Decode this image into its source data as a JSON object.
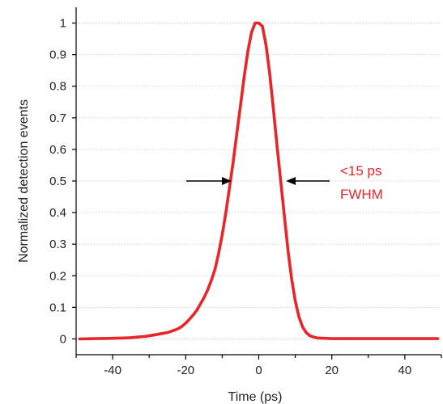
{
  "chart_data": {
    "type": "line",
    "title": "",
    "xlabel": "Time (ps)",
    "ylabel": "Normalized detection events",
    "xlim": [
      -50,
      50
    ],
    "ylim": [
      -0.05,
      1.05
    ],
    "xticks": [
      -40,
      -20,
      0,
      20,
      40
    ],
    "xtick_labels": [
      "-40",
      "-20",
      "0",
      "20",
      "40"
    ],
    "yticks": [
      0,
      0.1,
      0.2,
      0.3,
      0.4,
      0.5,
      0.6,
      0.7,
      0.8,
      0.9,
      1
    ],
    "ytick_labels": [
      "0",
      "0.1",
      "0.2",
      "0.3",
      "0.4",
      "0.5",
      "0.6",
      "0.7",
      "0.8",
      "0.9",
      "1"
    ],
    "grid": "horizontal dotted",
    "series": [
      {
        "color": "#e8262a",
        "x": [
          -49,
          -45,
          -40,
          -37,
          -35,
          -33,
          -31,
          -29,
          -27,
          -25,
          -24,
          -23,
          -22,
          -21,
          -20,
          -19,
          -18,
          -17,
          -16,
          -15,
          -14,
          -13,
          -12,
          -11,
          -10,
          -9,
          -8,
          -7,
          -6,
          -5,
          -4,
          -3,
          -2,
          -1,
          0,
          1,
          2,
          3,
          4,
          5,
          6,
          7,
          8,
          9,
          10,
          11,
          12,
          13,
          14,
          15,
          16,
          18,
          20,
          25,
          30,
          40,
          49
        ],
        "y": [
          0,
          0.001,
          0.002,
          0.003,
          0.004,
          0.006,
          0.008,
          0.012,
          0.016,
          0.02,
          0.024,
          0.028,
          0.033,
          0.04,
          0.05,
          0.062,
          0.075,
          0.09,
          0.11,
          0.13,
          0.155,
          0.185,
          0.22,
          0.27,
          0.33,
          0.4,
          0.48,
          0.56,
          0.65,
          0.74,
          0.83,
          0.91,
          0.97,
          1.0,
          1.0,
          0.99,
          0.93,
          0.84,
          0.73,
          0.61,
          0.5,
          0.39,
          0.28,
          0.19,
          0.12,
          0.07,
          0.038,
          0.02,
          0.01,
          0.006,
          0.003,
          0.002,
          0.001,
          0.001,
          0.001,
          0.001,
          0.001
        ]
      }
    ],
    "annotation": {
      "lines": [
        "<15 ps",
        "FWHM"
      ],
      "color": "#e8262a",
      "arrow_level": 0.5,
      "arrow_color": "#000000"
    }
  }
}
